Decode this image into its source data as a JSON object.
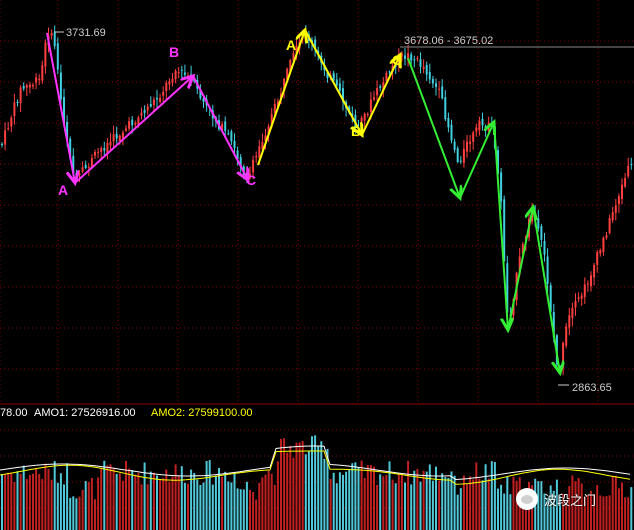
{
  "colors": {
    "background": "#000000",
    "grid": "#8b0000",
    "up_candle": "#ff4040",
    "down_candle": "#40d0e0",
    "magenta_wave": "#ff33ff",
    "yellow_wave": "#ffff00",
    "green_wave": "#33ee33",
    "amo_label": "#ffffff",
    "amo2_label": "#ffff00",
    "price_tag": "#cccccc"
  },
  "price_labels": {
    "high": "3731.69",
    "range": "3678.06 - 3675.02",
    "low": "2863.65"
  },
  "wave_labels": {
    "magenta": [
      "A",
      "B",
      "C"
    ],
    "yellow": [
      "A",
      "B",
      "C"
    ]
  },
  "indicator": {
    "amo_prefix": "78.00",
    "amo1": "AMO1: 27526916.00",
    "amo2": "AMO2: 27599100.00"
  },
  "watermark": {
    "icon": "wechat-icon",
    "text": "波段之门"
  },
  "chart_data": {
    "type": "candlestick",
    "price_annotations": [
      3731.69,
      3678.06,
      3675.02,
      2863.65
    ],
    "y_range_visible": [
      2863.65,
      3731.69
    ],
    "panels": [
      "price",
      "volume"
    ],
    "volume_series": [
      {
        "name": "AMO1",
        "value": 27526916.0
      },
      {
        "name": "AMO2",
        "value": 27599100.0
      }
    ]
  }
}
